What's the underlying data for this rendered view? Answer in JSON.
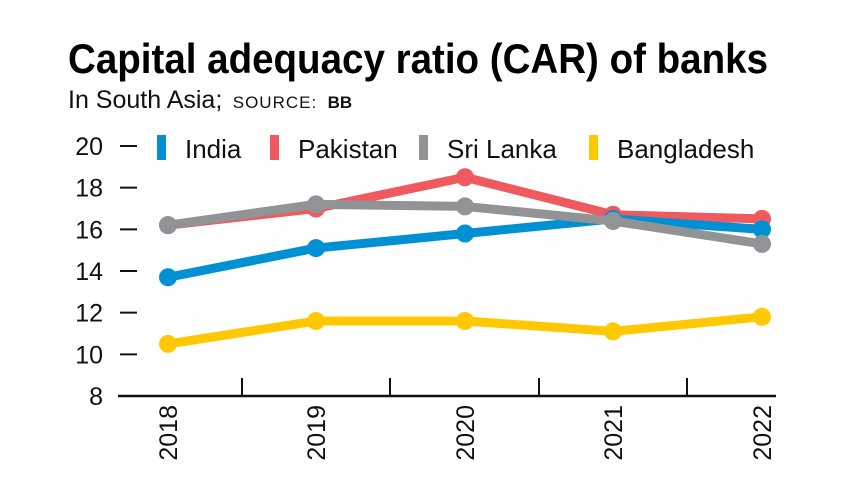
{
  "chart_data": {
    "type": "line",
    "title": "Capital adequacy ratio (CAR) of banks",
    "subtitle": "In South Asia;",
    "source_label": "SOURCE:",
    "source": "BB",
    "categories": [
      "2018",
      "2019",
      "2020",
      "2021",
      "2022"
    ],
    "ylim": [
      8,
      20
    ],
    "yticks": [
      8,
      10,
      12,
      14,
      16,
      18,
      20
    ],
    "grid": false,
    "legend_placement": "top",
    "series": [
      {
        "name": "India",
        "color": "#0090d4",
        "values": [
          13.7,
          15.1,
          15.8,
          16.5,
          16.0
        ]
      },
      {
        "name": "Pakistan",
        "color": "#ef5a5e",
        "values": [
          16.2,
          17.0,
          18.5,
          16.7,
          16.5
        ]
      },
      {
        "name": "Sri Lanka",
        "color": "#929396",
        "values": [
          16.2,
          17.2,
          17.1,
          16.4,
          15.3
        ]
      },
      {
        "name": "Bangladesh",
        "color": "#ffc800",
        "values": [
          10.5,
          11.6,
          11.6,
          11.1,
          11.8
        ]
      }
    ]
  }
}
